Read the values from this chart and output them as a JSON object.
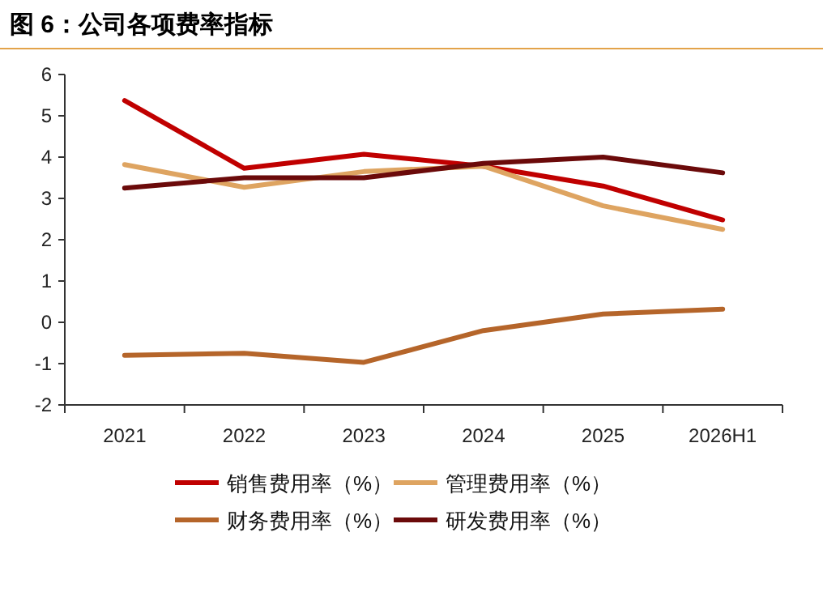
{
  "chart_data": {
    "type": "line",
    "title": "图 6：公司各项费率指标",
    "categories": [
      "2021",
      "2022",
      "2023",
      "2024",
      "2025",
      "2026H1"
    ],
    "series": [
      {
        "name": "销售费用率（%）",
        "color": "#c00000",
        "values": [
          5.37,
          3.73,
          4.07,
          3.78,
          3.3,
          2.48
        ]
      },
      {
        "name": "管理费用率（%）",
        "color": "#dea461",
        "values": [
          3.82,
          3.27,
          3.65,
          3.78,
          2.82,
          2.25
        ]
      },
      {
        "name": "财务费用率（%）",
        "color": "#b5652a",
        "values": [
          -0.8,
          -0.75,
          -0.97,
          -0.2,
          0.2,
          0.32
        ]
      },
      {
        "name": "研发费用率（%）",
        "color": "#6b0a0a",
        "values": [
          3.25,
          3.5,
          3.5,
          3.85,
          4.0,
          3.62
        ]
      }
    ],
    "ylim": [
      -2,
      6
    ],
    "yticks": [
      -2,
      -1,
      0,
      1,
      2,
      3,
      4,
      5,
      6
    ],
    "legend": "bottom",
    "marker": "none",
    "line_style": "solid"
  }
}
